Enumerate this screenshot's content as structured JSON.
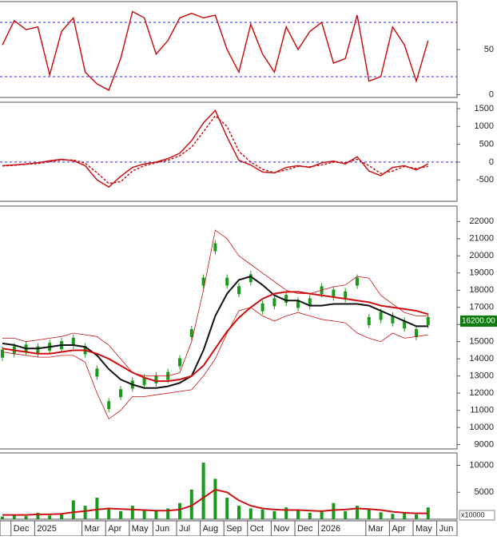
{
  "chart_data": [
    {
      "type": "line",
      "ylim": [
        -3,
        103
      ],
      "yticks": [
        0,
        50
      ],
      "hlines": [
        20,
        80
      ],
      "series": [
        {
          "color": "#c81414",
          "values": [
            55,
            82,
            72,
            75,
            22,
            70,
            85,
            25,
            12,
            5,
            40,
            92,
            85,
            45,
            60,
            85,
            90,
            85,
            88,
            50,
            25,
            78,
            45,
            25,
            75,
            50,
            70,
            80,
            35,
            40,
            88,
            15,
            20,
            75,
            55,
            15,
            60,
            null
          ]
        }
      ]
    },
    {
      "type": "line",
      "ylim": [
        -1100,
        1680
      ],
      "yticks": [
        -500,
        0,
        500,
        1000,
        1500
      ],
      "hlines": [
        0
      ],
      "series": [
        {
          "color": "#c81414",
          "values": [
            -100,
            -80,
            -50,
            -20,
            40,
            80,
            40,
            -100,
            -500,
            -700,
            -400,
            -150,
            -50,
            0,
            100,
            250,
            600,
            1100,
            1450,
            700,
            50,
            -80,
            -280,
            -300,
            -150,
            -100,
            -150,
            -20,
            30,
            -50,
            150,
            -250,
            -380,
            -150,
            -100,
            -220,
            -50,
            null
          ]
        },
        {
          "color": "#c81414",
          "dash": true,
          "values": [
            -110,
            -90,
            -60,
            -40,
            10,
            60,
            60,
            -30,
            -300,
            -600,
            -550,
            -250,
            -100,
            -20,
            50,
            180,
            420,
            850,
            1300,
            1000,
            300,
            0,
            -200,
            -300,
            -220,
            -120,
            -130,
            -80,
            0,
            -20,
            80,
            -100,
            -320,
            -250,
            -120,
            -180,
            -120,
            null
          ]
        }
      ]
    },
    {
      "type": "line",
      "ylim": [
        8750,
        22900
      ],
      "yticks": [
        9000,
        10000,
        11000,
        12000,
        13000,
        14000,
        15000,
        16000,
        17000,
        18000,
        19000,
        20000,
        21000,
        22000
      ],
      "price_label": {
        "value": 16200,
        "label": "16200.00"
      },
      "series": [
        {
          "color": "#1a9a1a",
          "style": "candle",
          "values": [
            14300,
            14500,
            14600,
            14500,
            14700,
            14800,
            15000,
            14500,
            13200,
            11300,
            12000,
            12500,
            12700,
            12800,
            13000,
            13800,
            15500,
            18500,
            20500,
            18500,
            18000,
            18700,
            17000,
            17300,
            17500,
            17200,
            17300,
            18000,
            17800,
            17700,
            18500,
            16200,
            16500,
            16300,
            16000,
            15500,
            16200,
            null
          ]
        },
        {
          "color": "#c81414",
          "width": 0.8,
          "values": [
            15200,
            15200,
            15000,
            15100,
            15200,
            15300,
            15500,
            15400,
            15300,
            14800,
            14000,
            13200,
            13000,
            13000,
            13000,
            13200,
            15000,
            18000,
            21500,
            21000,
            20000,
            19500,
            19000,
            18500,
            18000,
            17800,
            17800,
            18000,
            18200,
            18300,
            18800,
            18700,
            17700,
            17200,
            16700,
            16500,
            16500,
            null
          ]
        },
        {
          "color": "#c81414",
          "width": 0.8,
          "values": [
            14400,
            14300,
            14200,
            14100,
            14100,
            14200,
            14200,
            13800,
            12000,
            10500,
            11000,
            11800,
            11800,
            11900,
            12000,
            12100,
            12200,
            13000,
            14000,
            15500,
            16800,
            17000,
            16500,
            16200,
            16500,
            16700,
            16500,
            16300,
            16200,
            16100,
            15500,
            15200,
            15000,
            15500,
            15200,
            15300,
            15400,
            null
          ]
        },
        {
          "color": "#111111",
          "width": 2,
          "values": [
            14900,
            14800,
            14600,
            14600,
            14700,
            14800,
            14800,
            14700,
            14200,
            13400,
            12800,
            12500,
            12300,
            12300,
            12400,
            12600,
            13000,
            14500,
            16500,
            17800,
            18600,
            18800,
            18300,
            17700,
            17400,
            17400,
            17100,
            17100,
            17200,
            17200,
            17200,
            17100,
            16800,
            16500,
            16200,
            15900,
            15900,
            null
          ]
        },
        {
          "color": "#d01010",
          "width": 2,
          "values": [
            14600,
            14500,
            14400,
            14300,
            14300,
            14400,
            14500,
            14500,
            14300,
            14000,
            13600,
            13200,
            12900,
            12700,
            12700,
            12800,
            13000,
            13600,
            14600,
            15600,
            16400,
            17000,
            17500,
            17800,
            17900,
            17900,
            17800,
            17700,
            17600,
            17500,
            17400,
            17300,
            17100,
            17000,
            16900,
            16800,
            16600,
            null
          ]
        }
      ]
    },
    {
      "type": "bar",
      "ylim": [
        0,
        12300
      ],
      "yticks": [
        5000,
        10000
      ],
      "y_unit": "x10000",
      "categories": [
        null,
        "Dec",
        null,
        "2025",
        null,
        null,
        null,
        "Mar",
        null,
        "Apr",
        null,
        "May",
        null,
        "Jun",
        null,
        "Jul",
        null,
        "Aug",
        null,
        "Sep",
        null,
        "Oct",
        null,
        "Nov",
        null,
        "Dec",
        null,
        "2026",
        null,
        null,
        null,
        "Mar",
        null,
        "Apr",
        null,
        "May",
        null,
        "Jun"
      ],
      "series": [
        {
          "color": "#1a9a1a",
          "style": "bar",
          "values": [
            500,
            800,
            600,
            1200,
            700,
            1000,
            3500,
            2500,
            4000,
            2000,
            1500,
            2500,
            1800,
            1500,
            2000,
            3000,
            5500,
            10500,
            7500,
            4000,
            2500,
            2000,
            1800,
            1500,
            2200,
            1800,
            1200,
            1500,
            3000,
            1500,
            2500,
            2000,
            1300,
            1000,
            1200,
            900,
            2200,
            null
          ]
        },
        {
          "color": "#c81414",
          "width": 2,
          "values": [
            800,
            800,
            800,
            900,
            900,
            1000,
            1300,
            1500,
            1800,
            2000,
            1900,
            1800,
            1700,
            1600,
            1600,
            1800,
            2500,
            4000,
            5500,
            5000,
            3500,
            2500,
            2000,
            1800,
            1700,
            1700,
            1600,
            1500,
            1700,
            1800,
            2000,
            1900,
            1700,
            1400,
            1200,
            1100,
            1100,
            null
          ]
        }
      ]
    }
  ]
}
